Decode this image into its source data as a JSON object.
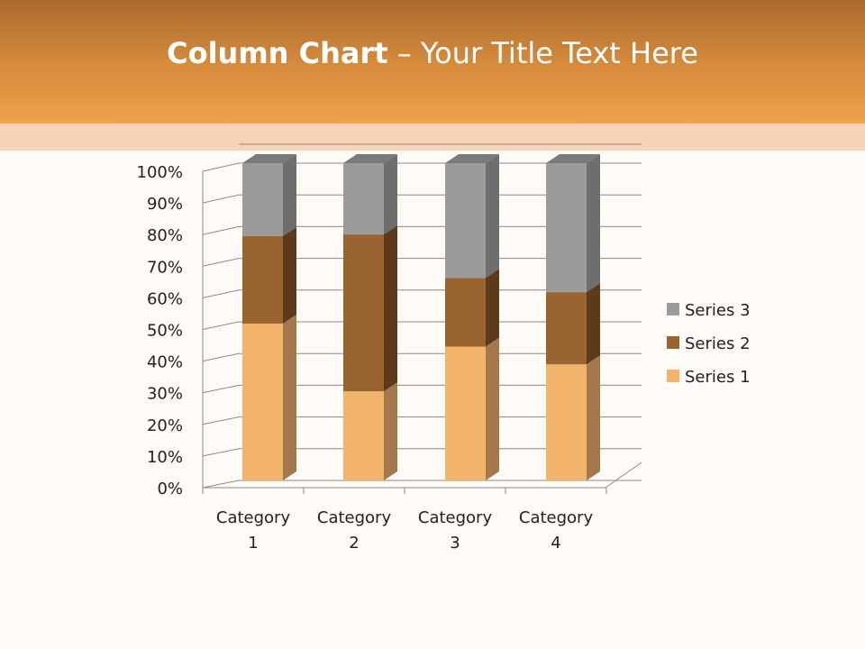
{
  "slide": {
    "title_bold": "Column Chart",
    "title_rest": " – Your Title Text Here"
  },
  "chart_data": {
    "type": "bar",
    "subtype": "3d-100%-stacked-column",
    "categories": [
      "Category 1",
      "Category 2",
      "Category 3",
      "Category 4"
    ],
    "category_lines": [
      [
        "Category",
        "1"
      ],
      [
        "Category",
        "2"
      ],
      [
        "Category",
        "3"
      ],
      [
        "Category",
        "4"
      ]
    ],
    "series": [
      {
        "name": "Series 1",
        "values": [
          4.3,
          2.5,
          3.5,
          4.5
        ],
        "color": "#F2B36B",
        "side": "#A4784A"
      },
      {
        "name": "Series 2",
        "values": [
          2.4,
          4.4,
          1.8,
          2.8
        ],
        "color": "#9A6430",
        "side": "#5E3A1C"
      },
      {
        "name": "Series 3",
        "values": [
          2,
          2,
          3,
          5
        ],
        "color": "#9B9B9B",
        "side": "#6E6E6E"
      }
    ],
    "yticks": [
      "0%",
      "10%",
      "20%",
      "30%",
      "40%",
      "50%",
      "60%",
      "70%",
      "80%",
      "90%",
      "100%"
    ],
    "ylim": [
      0,
      100
    ],
    "grid": true,
    "legend": "right"
  }
}
